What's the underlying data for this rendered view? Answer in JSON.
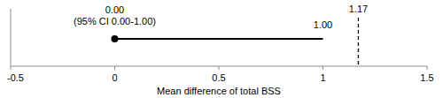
{
  "chart_data": {
    "type": "forest",
    "x_label": "Mean difference of total BSS",
    "xlim": [
      -0.5,
      1.5
    ],
    "xticks": [
      -0.5,
      0,
      0.5,
      1,
      1.5
    ],
    "values": [
      0
    ],
    "value_labels": [
      "0.00"
    ],
    "ci_low": [
      0
    ],
    "ci_high": [
      1
    ],
    "ci_high_labels": [
      "1.00"
    ],
    "annotations": [
      "(95% CI 0.00-1.00)"
    ],
    "reference_line": {
      "value": 1.17,
      "label": "1.17",
      "line_style": "dashed"
    },
    "color": "#000000"
  }
}
